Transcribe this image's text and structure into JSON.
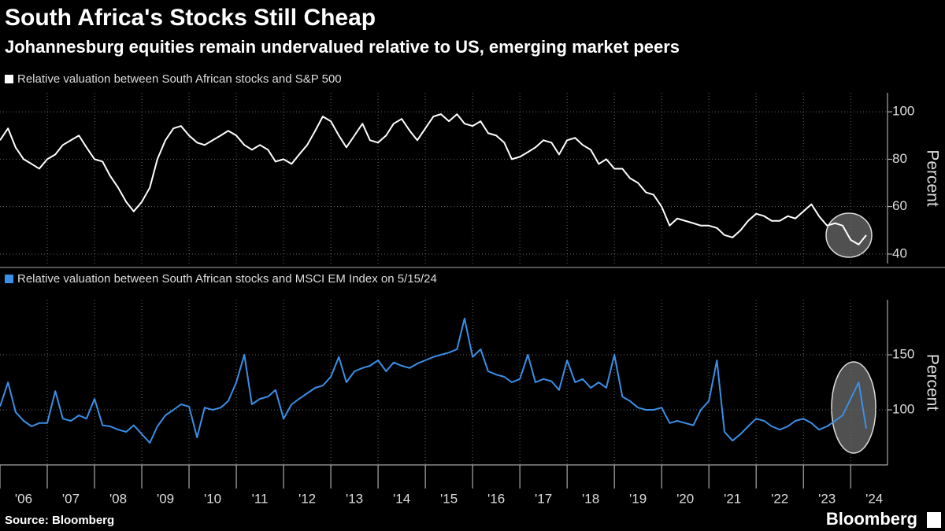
{
  "header": {
    "title": "South Africa's Stocks Still Cheap",
    "subtitle": "Johannesburg equities remain undervalued relative to US, emerging market peers"
  },
  "footer": {
    "source": "Source: Bloomberg",
    "brand": "Bloomberg"
  },
  "chart_data": [
    {
      "type": "line",
      "y_label": "Percent",
      "grid": true,
      "xlim": [
        2006,
        2024.78
      ],
      "ylim": [
        36,
        108
      ],
      "yticks": [
        40,
        60,
        80,
        100
      ],
      "x": [
        2006,
        2006.17,
        2006.33,
        2006.5,
        2006.67,
        2006.83,
        2007,
        2007.17,
        2007.33,
        2007.5,
        2007.67,
        2007.83,
        2008,
        2008.17,
        2008.33,
        2008.5,
        2008.67,
        2008.83,
        2009,
        2009.17,
        2009.33,
        2009.5,
        2009.67,
        2009.83,
        2010,
        2010.17,
        2010.33,
        2010.5,
        2010.67,
        2010.83,
        2011,
        2011.17,
        2011.33,
        2011.5,
        2011.67,
        2011.83,
        2012,
        2012.17,
        2012.33,
        2012.5,
        2012.67,
        2012.83,
        2013,
        2013.17,
        2013.33,
        2013.5,
        2013.67,
        2013.83,
        2014,
        2014.17,
        2014.33,
        2014.5,
        2014.67,
        2014.83,
        2015,
        2015.17,
        2015.33,
        2015.5,
        2015.67,
        2015.83,
        2016,
        2016.17,
        2016.33,
        2016.5,
        2016.67,
        2016.83,
        2017,
        2017.17,
        2017.33,
        2017.5,
        2017.67,
        2017.83,
        2018,
        2018.17,
        2018.33,
        2018.5,
        2018.67,
        2018.83,
        2019,
        2019.17,
        2019.33,
        2019.5,
        2019.67,
        2019.83,
        2020,
        2020.17,
        2020.33,
        2020.5,
        2020.67,
        2020.83,
        2021,
        2021.17,
        2021.33,
        2021.5,
        2021.67,
        2021.83,
        2022,
        2022.17,
        2022.33,
        2022.5,
        2022.67,
        2022.83,
        2023,
        2023.17,
        2023.33,
        2023.5,
        2023.67,
        2023.83,
        2024,
        2024.17,
        2024.33
      ],
      "series": [
        {
          "name": "Relative valuation between South African stocks and S&P 500",
          "color": "#ffffff",
          "values": [
            88,
            93,
            85,
            80,
            78,
            76,
            80,
            82,
            86,
            88,
            90,
            85,
            80,
            79,
            73,
            68,
            62,
            58,
            62,
            68,
            80,
            88,
            93,
            94,
            90,
            87,
            86,
            88,
            90,
            92,
            90,
            86,
            84,
            86,
            84,
            79,
            80,
            78,
            82,
            86,
            92,
            98,
            96,
            90,
            85,
            90,
            95,
            88,
            87,
            90,
            95,
            97,
            92,
            88,
            93,
            98,
            99,
            96,
            99,
            95,
            94,
            96,
            91,
            90,
            87,
            80,
            81,
            83,
            85,
            88,
            87,
            82,
            88,
            89,
            86,
            84,
            78,
            80,
            76,
            76,
            72,
            70,
            66,
            65,
            60,
            52,
            55,
            54,
            53,
            52,
            52,
            51,
            48,
            47,
            50,
            54,
            57,
            56,
            54,
            54,
            56,
            55,
            58,
            61,
            56,
            52,
            53,
            52,
            46,
            44,
            48
          ]
        }
      ]
    },
    {
      "type": "line",
      "y_label": "Percent",
      "grid": true,
      "xlim": [
        2006,
        2024.78
      ],
      "ylim": [
        50,
        200
      ],
      "yticks": [
        100,
        150
      ],
      "xticks": [
        {
          "value": 2006,
          "label": "'06"
        },
        {
          "value": 2007,
          "label": "'07"
        },
        {
          "value": 2008,
          "label": "'08"
        },
        {
          "value": 2009,
          "label": "'09"
        },
        {
          "value": 2010,
          "label": "'10"
        },
        {
          "value": 2011,
          "label": "'11"
        },
        {
          "value": 2012,
          "label": "'12"
        },
        {
          "value": 2013,
          "label": "'13"
        },
        {
          "value": 2014,
          "label": "'14"
        },
        {
          "value": 2015,
          "label": "'15"
        },
        {
          "value": 2016,
          "label": "'16"
        },
        {
          "value": 2017,
          "label": "'17"
        },
        {
          "value": 2018,
          "label": "'18"
        },
        {
          "value": 2019,
          "label": "'19"
        },
        {
          "value": 2020,
          "label": "'20"
        },
        {
          "value": 2021,
          "label": "'21"
        },
        {
          "value": 2022,
          "label": "'22"
        },
        {
          "value": 2023,
          "label": "'23"
        },
        {
          "value": 2024,
          "label": "'24"
        }
      ],
      "x": [
        2006,
        2006.17,
        2006.33,
        2006.5,
        2006.67,
        2006.83,
        2007,
        2007.17,
        2007.33,
        2007.5,
        2007.67,
        2007.83,
        2008,
        2008.17,
        2008.33,
        2008.5,
        2008.67,
        2008.83,
        2009,
        2009.17,
        2009.33,
        2009.5,
        2009.67,
        2009.83,
        2010,
        2010.17,
        2010.33,
        2010.5,
        2010.67,
        2010.83,
        2011,
        2011.17,
        2011.33,
        2011.5,
        2011.67,
        2011.83,
        2012,
        2012.17,
        2012.33,
        2012.5,
        2012.67,
        2012.83,
        2013,
        2013.17,
        2013.33,
        2013.5,
        2013.67,
        2013.83,
        2014,
        2014.17,
        2014.33,
        2014.5,
        2014.67,
        2014.83,
        2015,
        2015.17,
        2015.33,
        2015.5,
        2015.67,
        2015.83,
        2016,
        2016.17,
        2016.33,
        2016.5,
        2016.67,
        2016.83,
        2017,
        2017.17,
        2017.33,
        2017.5,
        2017.67,
        2017.83,
        2018,
        2018.17,
        2018.33,
        2018.5,
        2018.67,
        2018.83,
        2019,
        2019.17,
        2019.33,
        2019.5,
        2019.67,
        2019.83,
        2020,
        2020.17,
        2020.33,
        2020.5,
        2020.67,
        2020.83,
        2021,
        2021.17,
        2021.33,
        2021.5,
        2021.67,
        2021.83,
        2022,
        2022.17,
        2022.33,
        2022.5,
        2022.67,
        2022.83,
        2023,
        2023.17,
        2023.33,
        2023.5,
        2023.67,
        2023.83,
        2024,
        2024.17,
        2024.33
      ],
      "series": [
        {
          "name": "Relative valuation between South African stocks and MSCI EM Index on 5/15/24",
          "color": "#3a8fe8",
          "values": [
            103,
            125,
            98,
            90,
            85,
            88,
            88,
            117,
            92,
            90,
            95,
            92,
            110,
            86,
            85,
            82,
            80,
            86,
            78,
            70,
            85,
            95,
            100,
            105,
            103,
            75,
            102,
            100,
            102,
            108,
            125,
            150,
            105,
            110,
            112,
            118,
            92,
            105,
            110,
            115,
            120,
            122,
            130,
            148,
            125,
            135,
            138,
            140,
            145,
            135,
            143,
            140,
            138,
            142,
            145,
            148,
            150,
            152,
            155,
            183,
            148,
            155,
            135,
            132,
            130,
            125,
            128,
            150,
            125,
            128,
            126,
            118,
            145,
            125,
            128,
            120,
            125,
            120,
            150,
            112,
            108,
            102,
            100,
            100,
            102,
            88,
            90,
            88,
            86,
            100,
            108,
            145,
            80,
            72,
            78,
            85,
            92,
            90,
            85,
            82,
            85,
            90,
            92,
            88,
            82,
            85,
            90,
            95,
            110,
            125,
            83
          ]
        }
      ]
    }
  ]
}
